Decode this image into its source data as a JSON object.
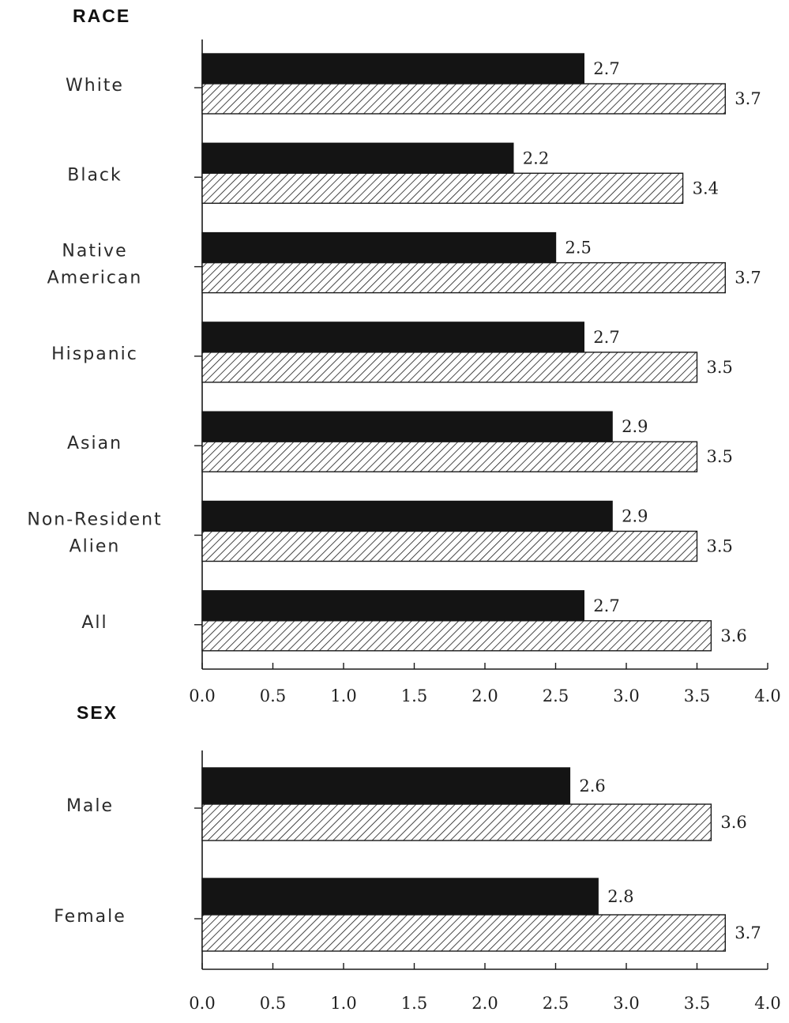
{
  "chart_data": [
    {
      "type": "bar",
      "orientation": "horizontal",
      "section_title": "RACE",
      "categories": [
        [
          "White"
        ],
        [
          "Black"
        ],
        [
          "Native",
          "American"
        ],
        [
          "Hispanic"
        ],
        [
          "Asian"
        ],
        [
          "Non-Resident",
          "Alien"
        ],
        [
          "All"
        ]
      ],
      "series": [
        {
          "fill": "solid-black",
          "values": [
            2.7,
            2.2,
            2.5,
            2.7,
            2.9,
            2.9,
            2.7
          ]
        },
        {
          "fill": "diagonal-hatch",
          "values": [
            3.7,
            3.4,
            3.7,
            3.5,
            3.5,
            3.5,
            3.6
          ]
        }
      ],
      "xlim": [
        0,
        4.0
      ],
      "xticks": [
        "0.0",
        "0.5",
        "1.0",
        "1.5",
        "2.0",
        "2.5",
        "3.0",
        "3.5",
        "4.0"
      ],
      "grid": false,
      "legend": "none"
    },
    {
      "type": "bar",
      "orientation": "horizontal",
      "section_title": "SEX",
      "categories": [
        [
          "Male"
        ],
        [
          "Female"
        ]
      ],
      "series": [
        {
          "fill": "solid-black",
          "values": [
            2.6,
            2.8
          ]
        },
        {
          "fill": "diagonal-hatch",
          "values": [
            3.6,
            3.7
          ]
        }
      ],
      "xlim": [
        0,
        4.0
      ],
      "xticks": [
        "0.0",
        "0.5",
        "1.0",
        "1.5",
        "2.0",
        "2.5",
        "3.0",
        "3.5",
        "4.0"
      ],
      "grid": false,
      "legend": "none"
    }
  ],
  "colors": {
    "solid_bar": "#141414",
    "hatch_stroke": "#1a1a1a",
    "axis": "#1a1a1a",
    "text": "#222222"
  }
}
